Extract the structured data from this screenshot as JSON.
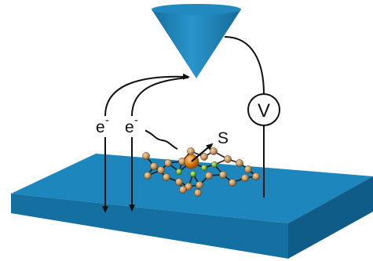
{
  "labels": {
    "electron_left": "e",
    "electron_right": "e",
    "electron_charge": "-",
    "spin": "S",
    "voltmeter": "V"
  },
  "colors": {
    "substrate_top": "#1d86bd",
    "substrate_front": "#1570a2",
    "substrate_side": "#0e5c87",
    "tip": "#1d86bd",
    "tip_dark": "#156f9f",
    "wire": "#111111",
    "central_atom": "#e07e10",
    "ligand_atom": "#c89a63",
    "nitrogen_atom": "#7dbb3a",
    "bond": "#1a1a1a"
  },
  "icons": {
    "circuit_meter": "voltmeter-icon",
    "spin_arrow": "spin-arrow-icon",
    "molecule": "molecule-icon",
    "stm_tip": "stm-tip-icon"
  }
}
